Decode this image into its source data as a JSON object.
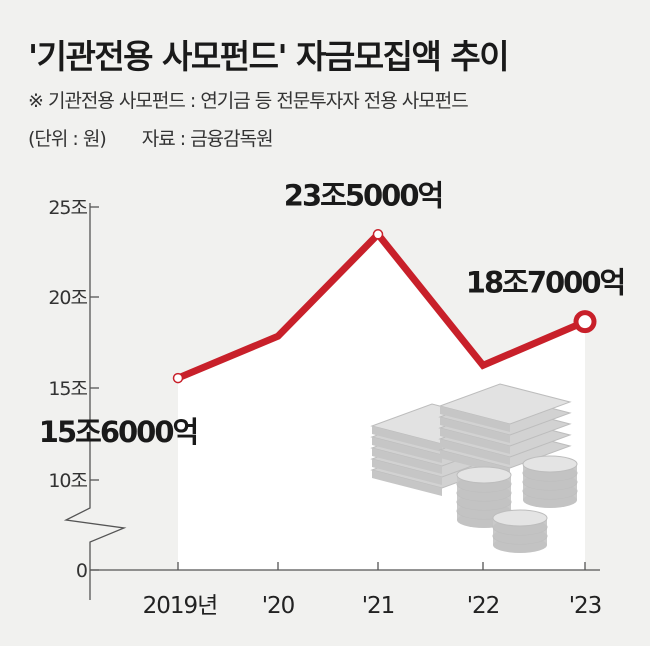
{
  "header": {
    "title": "'기관전용 사모펀드' 자금모집액 추이",
    "note": "※ 기관전용 사모펀드 : 연기금 등 전문투자자 전용 사모펀드",
    "unit": "(단위 : 원)",
    "source": "자료 : 금융감독원"
  },
  "chart_data": {
    "type": "line",
    "title": "'기관전용 사모펀드' 자금모집액 추이",
    "xlabel": "",
    "ylabel": "",
    "unit": "원",
    "categories": [
      "2019년",
      "'20",
      "'21",
      "'22",
      "'23"
    ],
    "series": [
      {
        "values": [
          15.6,
          17.9,
          23.5,
          16.3,
          18.7
        ]
      }
    ],
    "y_ticks": [
      {
        "value": 0,
        "label": "0"
      },
      {
        "value": 10,
        "label": "10조"
      },
      {
        "value": 15,
        "label": "15조"
      },
      {
        "value": 20,
        "label": "20조"
      },
      {
        "value": 25,
        "label": "25조"
      }
    ],
    "ylim": [
      0,
      25
    ],
    "axis_break": true,
    "data_labels": [
      {
        "index": 0,
        "text": "15조6000억"
      },
      {
        "index": 2,
        "text": "23조5000억"
      },
      {
        "index": 4,
        "text": "18조7000억"
      }
    ],
    "grid": false,
    "legend": "none",
    "colors": {
      "line": "#c8202a",
      "area": "#ffffff",
      "background": "#f1f1ef",
      "axis": "#555555"
    }
  }
}
